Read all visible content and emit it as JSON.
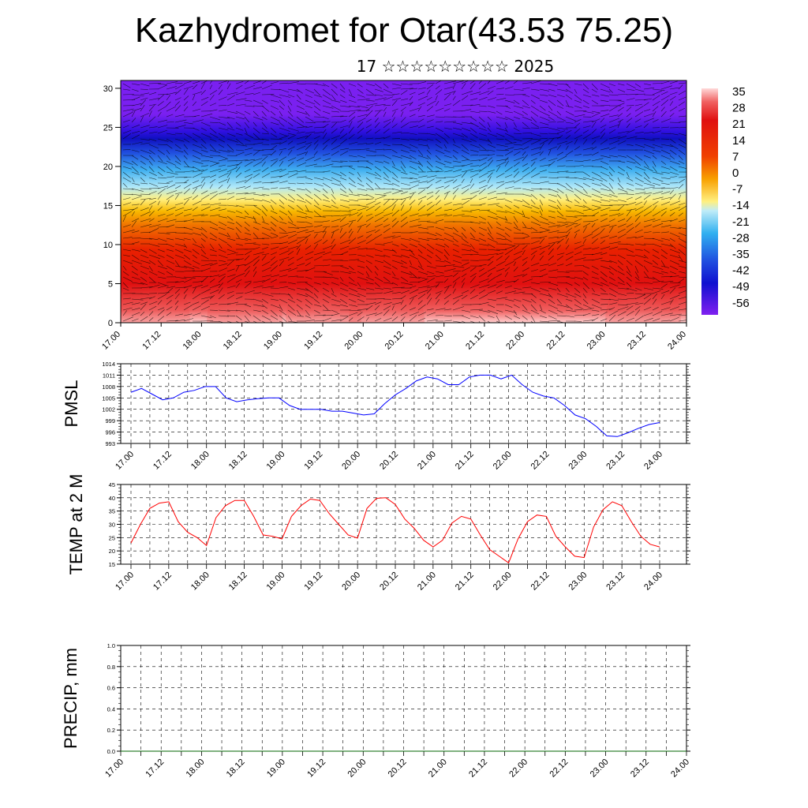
{
  "header": {
    "title": "Kazhydromet for Otar(43.53 75.25)",
    "subtitle": "17 ☆☆☆☆☆☆☆☆☆ 2025"
  },
  "time_labels": [
    "17.00",
    "17.12",
    "18.00",
    "18.12",
    "19.00",
    "19.12",
    "20.00",
    "20.12",
    "21.00",
    "21.12",
    "22.00",
    "22.12",
    "23.00",
    "23.12",
    "24.00"
  ],
  "colors": {
    "pmsl_line": "#0000ff",
    "temp_line": "#ff0000",
    "precip_line": "#006400",
    "grid": "#000000"
  },
  "chart_data": [
    {
      "type": "heatmap",
      "name": "temperature-height",
      "x_ticks": [
        "17.00",
        "17.12",
        "18.00",
        "18.12",
        "19.00",
        "19.12",
        "20.00",
        "20.12",
        "21.00",
        "21.12",
        "22.00",
        "22.12",
        "23.00",
        "23.12",
        "24.00"
      ],
      "y_ticks": [
        "0",
        "5",
        "10",
        "15",
        "20",
        "25",
        "30"
      ],
      "ylim": [
        0,
        31
      ],
      "colorbar_labels": [
        "35",
        "28",
        "21",
        "14",
        "7",
        "0",
        "-7",
        "-14",
        "-21",
        "-28",
        "-35",
        "-42",
        "-49",
        "-56"
      ],
      "colorbar_range": [
        -60,
        38
      ],
      "overlay": "wind streamlines"
    },
    {
      "type": "line",
      "ylabel": "PMSL",
      "y_ticks": [
        "1014",
        "1011",
        "1008",
        "1005",
        "1002",
        "999",
        "996",
        "993"
      ],
      "ylim": [
        993,
        1014
      ],
      "x_ticks": [
        "17.00",
        "17.12",
        "18.00",
        "18.12",
        "19.00",
        "19.12",
        "20.00",
        "20.12",
        "21.00",
        "21.12",
        "22.00",
        "22.12",
        "23.00",
        "23.12",
        "24.00"
      ],
      "step_hours": 3,
      "values": [
        1006.5,
        1007.5,
        1006,
        1004.5,
        1005,
        1006.5,
        1007,
        1008,
        1008,
        1005,
        1004,
        1004.5,
        1004.8,
        1005,
        1005,
        1003,
        1002,
        1002,
        1002,
        1001.5,
        1001.5,
        1001,
        1000.5,
        1000.8,
        1003.5,
        1005.8,
        1007.5,
        1009.5,
        1010.5,
        1010,
        1008.5,
        1008.5,
        1010.5,
        1011,
        1011,
        1010,
        1011,
        1008.5,
        1006.5,
        1005.5,
        1005,
        1003,
        1000.5,
        999.5,
        997.5,
        995,
        994.8,
        995.8,
        997,
        998,
        998.5
      ]
    },
    {
      "type": "line",
      "ylabel": "TEMP at 2 M",
      "y_ticks": [
        "45",
        "40",
        "35",
        "30",
        "25",
        "20",
        "15"
      ],
      "ylim": [
        15,
        45
      ],
      "x_ticks": [
        "17.00",
        "17.12",
        "18.00",
        "18.12",
        "19.00",
        "19.12",
        "20.00",
        "20.12",
        "21.00",
        "21.12",
        "22.00",
        "22.12",
        "23.00",
        "23.12",
        "24.00"
      ],
      "step_hours": 3,
      "values": [
        23,
        30,
        36,
        38,
        38.5,
        31,
        27,
        25,
        22,
        32.5,
        37,
        39,
        39,
        33,
        26,
        25.5,
        24.5,
        33,
        37,
        39.5,
        39,
        34,
        30,
        26,
        24.8,
        36,
        39.8,
        40,
        37.5,
        32,
        28.5,
        24,
        21.5,
        24,
        30.5,
        33,
        32,
        26,
        20.5,
        18,
        15.5,
        24.5,
        31,
        33.5,
        33,
        25.5,
        21.5,
        18,
        17.5,
        29,
        35.5,
        38.5,
        37,
        31,
        25.5,
        22.5,
        21.5
      ]
    },
    {
      "type": "line",
      "ylabel": "PRECIP, mm",
      "y_ticks": [
        "1.0",
        "0.8",
        "0.6",
        "0.4",
        "0.2",
        "0.0"
      ],
      "ylim": [
        0,
        1
      ],
      "x_ticks": [
        "17.00",
        "17.12",
        "18.00",
        "18.12",
        "19.00",
        "19.12",
        "20.00",
        "20.12",
        "21.00",
        "21.12",
        "22.00",
        "22.12",
        "23.00",
        "23.12",
        "24.00"
      ],
      "values": [
        0,
        0,
        0,
        0,
        0,
        0,
        0,
        0,
        0,
        0,
        0,
        0,
        0,
        0,
        0
      ]
    }
  ]
}
